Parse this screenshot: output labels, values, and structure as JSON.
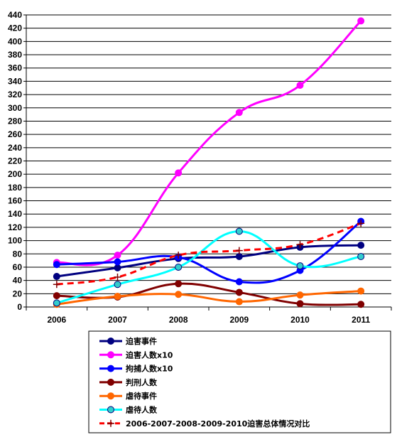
{
  "chart_data": {
    "type": "line",
    "title": "",
    "xlabel": "",
    "ylabel": "",
    "categories": [
      "2006",
      "2007",
      "2008",
      "2009",
      "2010",
      "2011"
    ],
    "ylim": [
      0,
      440
    ],
    "ytick_step": 20,
    "grid": true,
    "legend_position": "bottom",
    "series": [
      {
        "name": "迫害事件",
        "values": [
          46,
          59,
          73,
          76,
          90,
          93
        ],
        "color": "#000080",
        "marker": "circle",
        "marker_fill": "#000080",
        "dashed": false
      },
      {
        "name": "迫害人数x10",
        "values": [
          67,
          78,
          202,
          293,
          334,
          431
        ],
        "color": "#ff00ff",
        "marker": "circle",
        "marker_fill": "#ff00ff",
        "dashed": false
      },
      {
        "name": "拘捕人数x10",
        "values": [
          64,
          68,
          75,
          38,
          55,
          129
        ],
        "color": "#0000ff",
        "marker": "circle",
        "marker_fill": "#0000ff",
        "dashed": false
      },
      {
        "name": "判刑人数",
        "values": [
          17,
          15,
          35,
          22,
          5,
          4
        ],
        "color": "#800000",
        "marker": "circle",
        "marker_fill": "#800000",
        "dashed": false
      },
      {
        "name": "虐待事件",
        "values": [
          4,
          16,
          19,
          8,
          18,
          24
        ],
        "color": "#ff6600",
        "marker": "circle",
        "marker_fill": "#ff6600",
        "dashed": false
      },
      {
        "name": "虐待人数",
        "values": [
          6,
          34,
          60,
          114,
          62,
          76
        ],
        "color": "#00ffff",
        "marker": "circle",
        "marker_fill": "#33cccc",
        "dashed": false
      },
      {
        "name": "2006-2007-2008-2009-2010迫害总体情况对比",
        "values": [
          34,
          45,
          78,
          85,
          94,
          126
        ],
        "color": "#ff0000",
        "marker": "plus",
        "marker_fill": "#800000",
        "dashed": true
      }
    ]
  }
}
